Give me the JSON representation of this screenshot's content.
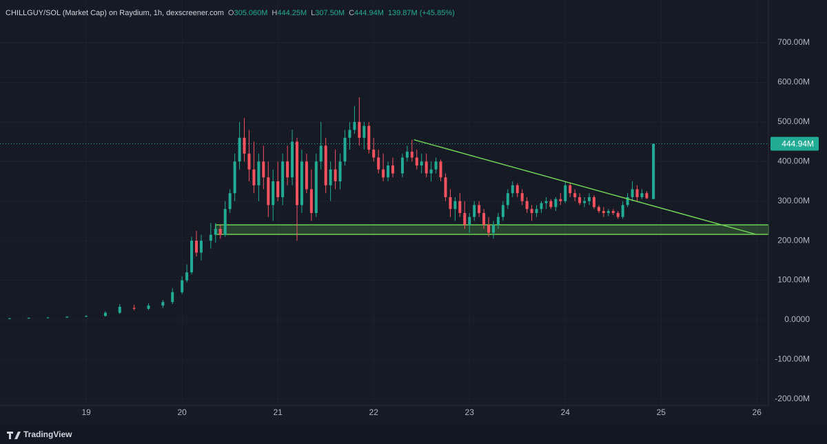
{
  "chart_data": {
    "type": "candlestick",
    "title": "CHILLGUY/SOL (Market Cap) on Raydium, 1h, dexscreener.com",
    "ohlc_legend": [
      {
        "key": "O",
        "value": "305.060M"
      },
      {
        "key": "H",
        "value": "444.25M"
      },
      {
        "key": "L",
        "value": "307.50M"
      },
      {
        "key": "C",
        "value": "444.94M"
      }
    ],
    "change": "139.87M (+45.85%)",
    "up_color": "#22ab94",
    "down_color": "#f7525f",
    "x": [
      18.2,
      18.4,
      18.6,
      18.8,
      19.0,
      19.2,
      19.35,
      19.5,
      19.65,
      19.8,
      19.9,
      20.0,
      20.05,
      20.1,
      20.15,
      20.2,
      20.3,
      20.35,
      20.4,
      20.45,
      20.5,
      20.55,
      20.6,
      20.65,
      20.7,
      20.75,
      20.8,
      20.85,
      20.9,
      20.95,
      21.0,
      21.05,
      21.1,
      21.15,
      21.2,
      21.25,
      21.3,
      21.35,
      21.4,
      21.45,
      21.5,
      21.55,
      21.6,
      21.65,
      21.7,
      21.75,
      21.8,
      21.85,
      21.9,
      21.95,
      22.0,
      22.05,
      22.1,
      22.15,
      22.2,
      22.3,
      22.35,
      22.4,
      22.45,
      22.5,
      22.55,
      22.6,
      22.65,
      22.7,
      22.75,
      22.8,
      22.85,
      22.9,
      22.95,
      23.0,
      23.05,
      23.1,
      23.15,
      23.2,
      23.25,
      23.3,
      23.35,
      23.4,
      23.45,
      23.5,
      23.55,
      23.6,
      23.65,
      23.7,
      23.75,
      23.8,
      23.85,
      23.9,
      23.95,
      24.0,
      24.05,
      24.1,
      24.15,
      24.2,
      24.25,
      24.3,
      24.35,
      24.4,
      24.45,
      24.5,
      24.55,
      24.6,
      24.65,
      24.7,
      24.75,
      24.8,
      24.85,
      24.92
    ],
    "open": [
      3,
      4,
      5,
      6,
      8,
      10,
      18,
      30,
      28,
      36,
      45,
      70,
      100,
      120,
      200,
      170,
      200,
      215,
      230,
      215,
      280,
      320,
      400,
      460,
      420,
      380,
      340,
      400,
      360,
      290,
      350,
      310,
      400,
      360,
      450,
      290,
      400,
      330,
      270,
      400,
      440,
      340,
      380,
      350,
      400,
      460,
      480,
      500,
      460,
      490,
      430,
      410,
      380,
      360,
      390,
      370,
      410,
      425,
      410,
      390,
      400,
      370,
      380,
      400,
      360,
      310,
      280,
      300,
      270,
      240,
      260,
      290,
      270,
      240,
      220,
      240,
      260,
      290,
      320,
      340,
      320,
      300,
      280,
      270,
      280,
      295,
      300,
      285,
      305,
      300,
      340,
      320,
      310,
      295,
      300,
      310,
      285,
      275,
      270,
      275,
      270,
      260,
      290,
      310,
      330,
      310,
      320,
      305.06
    ],
    "high": [
      5,
      6,
      7,
      9,
      11,
      22,
      40,
      38,
      42,
      50,
      80,
      110,
      140,
      210,
      225,
      215,
      245,
      245,
      240,
      300,
      330,
      420,
      500,
      510,
      480,
      450,
      420,
      440,
      400,
      380,
      400,
      420,
      440,
      480,
      460,
      430,
      420,
      380,
      420,
      500,
      460,
      400,
      430,
      420,
      480,
      500,
      540,
      562,
      500,
      500,
      460,
      430,
      420,
      400,
      410,
      420,
      440,
      455,
      430,
      420,
      420,
      400,
      410,
      405,
      370,
      330,
      310,
      320,
      300,
      270,
      300,
      300,
      280,
      260,
      250,
      270,
      300,
      330,
      350,
      345,
      330,
      310,
      290,
      290,
      300,
      310,
      305,
      310,
      320,
      350,
      345,
      330,
      320,
      310,
      320,
      315,
      290,
      285,
      280,
      280,
      275,
      300,
      320,
      350,
      340,
      330,
      325,
      444.25
    ],
    "low": [
      2,
      3,
      4,
      5,
      7,
      8,
      15,
      24,
      25,
      30,
      40,
      65,
      95,
      115,
      160,
      150,
      180,
      195,
      205,
      210,
      270,
      300,
      380,
      400,
      350,
      320,
      300,
      330,
      260,
      250,
      300,
      290,
      340,
      340,
      200,
      270,
      320,
      250,
      260,
      380,
      320,
      300,
      330,
      330,
      390,
      430,
      470,
      440,
      430,
      420,
      400,
      370,
      350,
      350,
      360,
      360,
      400,
      400,
      380,
      370,
      360,
      350,
      370,
      350,
      300,
      260,
      250,
      260,
      230,
      220,
      250,
      260,
      230,
      210,
      205,
      230,
      250,
      280,
      310,
      310,
      290,
      270,
      250,
      260,
      270,
      280,
      280,
      275,
      290,
      295,
      310,
      300,
      290,
      285,
      290,
      280,
      270,
      260,
      262,
      265,
      255,
      255,
      285,
      300,
      300,
      305,
      305,
      307.5
    ],
    "close": [
      4,
      5,
      6,
      8,
      10,
      18,
      33,
      28,
      36,
      45,
      70,
      100,
      120,
      200,
      170,
      200,
      215,
      230,
      215,
      280,
      320,
      400,
      460,
      420,
      380,
      340,
      400,
      360,
      290,
      350,
      310,
      400,
      360,
      450,
      290,
      400,
      330,
      270,
      400,
      440,
      340,
      380,
      350,
      400,
      460,
      480,
      500,
      460,
      490,
      430,
      410,
      380,
      360,
      390,
      370,
      410,
      425,
      410,
      390,
      400,
      370,
      380,
      400,
      360,
      310,
      280,
      300,
      270,
      240,
      260,
      290,
      270,
      240,
      220,
      240,
      260,
      290,
      320,
      340,
      320,
      300,
      280,
      270,
      280,
      295,
      300,
      285,
      305,
      300,
      340,
      320,
      310,
      295,
      300,
      310,
      285,
      275,
      270,
      275,
      270,
      260,
      290,
      310,
      330,
      310,
      320,
      307.5,
      444.94
    ],
    "xlim": [
      18.1,
      26.12
    ],
    "xticks": [
      19,
      20,
      21,
      22,
      23,
      24,
      25,
      26
    ],
    "ylim": [
      -216,
      808
    ],
    "yticks": [
      {
        "value": -200,
        "label": "-200.00M"
      },
      {
        "value": -100,
        "label": "-100.00M"
      },
      {
        "value": 0,
        "label": "0.0000"
      },
      {
        "value": 100,
        "label": "100.00M"
      },
      {
        "value": 200,
        "label": "200.00M"
      },
      {
        "value": 300,
        "label": "300.00M"
      },
      {
        "value": 400,
        "label": "400.00M"
      },
      {
        "value": 500,
        "label": "500.00M"
      },
      {
        "value": 600,
        "label": "600.00M"
      },
      {
        "value": 700,
        "label": "700.00M"
      }
    ],
    "grid": true,
    "last_price": {
      "value": 444.94,
      "label": "444.94M"
    },
    "trendline": {
      "x": [
        22.42,
        25.99
      ],
      "y": [
        455,
        216
      ],
      "color": "#6fcf57"
    },
    "zone": {
      "x": [
        20.35,
        26.12
      ],
      "y": [
        216,
        240
      ],
      "color": "#6fcf57"
    }
  },
  "footer": {
    "brand": "TradingView"
  }
}
